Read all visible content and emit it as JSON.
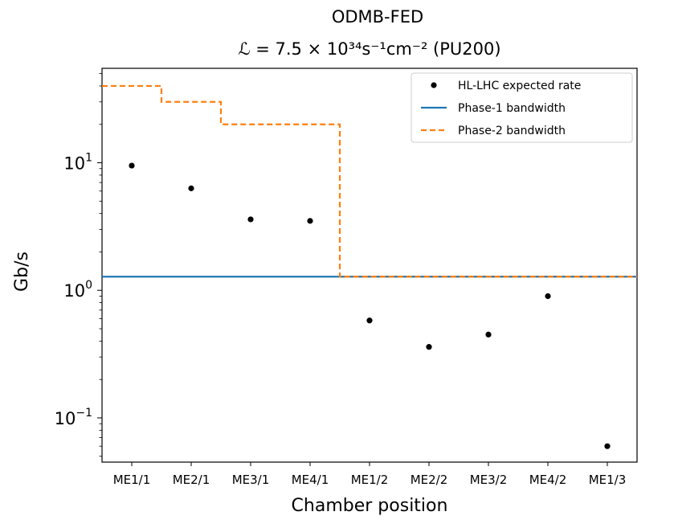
{
  "chart_data": {
    "type": "scatter",
    "title": "ODMB-FED",
    "subtitle": "ℒ = 7.5 × 10³⁴s⁻¹cm⁻²  (PU200)",
    "xlabel": "Chamber position",
    "ylabel": "Gb/s",
    "yscale": "log",
    "ylim": [
      0.045,
      55
    ],
    "categories": [
      "ME1/1",
      "ME2/1",
      "ME3/1",
      "ME4/1",
      "ME1/2",
      "ME2/2",
      "ME3/2",
      "ME4/2",
      "ME1/3"
    ],
    "y_ticks": [
      {
        "value": 10,
        "label": "10",
        "exp": "1"
      },
      {
        "value": 1,
        "label": "10",
        "exp": "0"
      },
      {
        "value": 0.1,
        "label": "10",
        "exp": "−1"
      }
    ],
    "grid": false,
    "legend_position": "top-right",
    "series": [
      {
        "name": "HL-LHC expected rate",
        "kind": "markers",
        "color": "#000000",
        "values": [
          9.5,
          6.3,
          3.6,
          3.5,
          0.58,
          0.36,
          0.45,
          0.9,
          0.06
        ]
      },
      {
        "name": "Phase-1 bandwidth",
        "kind": "line",
        "style": "solid",
        "color": "#1f77b4",
        "value": 1.28
      },
      {
        "name": "Phase-2 bandwidth",
        "kind": "step",
        "style": "dashed",
        "color": "#ff7f0e",
        "steps": [
          {
            "from": -0.5,
            "to": 0.5,
            "value": 40
          },
          {
            "from": 0.5,
            "to": 1.5,
            "value": 30
          },
          {
            "from": 1.5,
            "to": 3.5,
            "value": 20
          },
          {
            "from": 3.5,
            "to": 8.5,
            "value": 1.28
          }
        ]
      }
    ]
  }
}
